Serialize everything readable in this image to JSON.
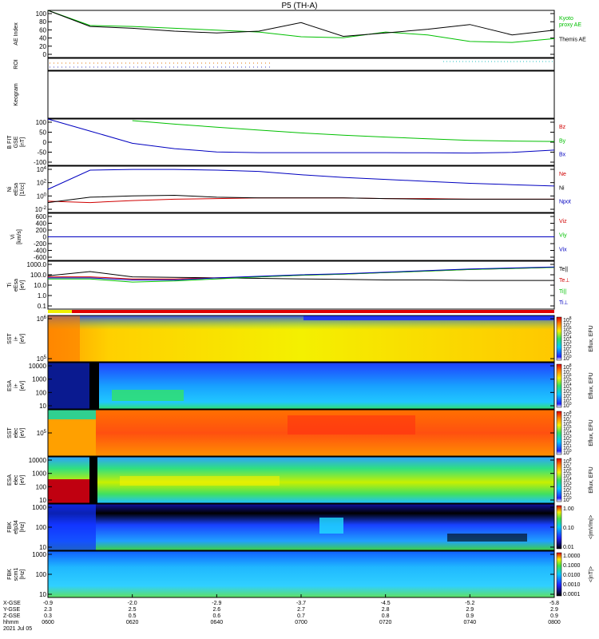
{
  "title": "P5 (TH-A)",
  "panels": [
    {
      "id": "ae",
      "ylabel": [
        "AE Index"
      ],
      "ticks": [
        "100",
        "80",
        "60",
        "40",
        "20",
        "0"
      ],
      "legend": [
        {
          "text": "Kyoto\nproxy AE",
          "color": "#00c000"
        },
        {
          "text": "Themis AE",
          "color": "#000000"
        }
      ]
    },
    {
      "id": "roi",
      "ylabel": [
        "ROI"
      ],
      "ticks": [],
      "legend": []
    },
    {
      "id": "keogram",
      "ylabel": [
        "Keogram"
      ],
      "ticks": [],
      "legend": []
    },
    {
      "id": "bfit",
      "ylabel": [
        "B FIT",
        "GSE",
        "[nT]"
      ],
      "ticks": [
        "100",
        "50",
        "0",
        "-50",
        "-100"
      ],
      "legend": [
        {
          "text": "Bz",
          "color": "#d00000"
        },
        {
          "text": "By",
          "color": "#00c000"
        },
        {
          "text": "Bx",
          "color": "#0000c0"
        }
      ]
    },
    {
      "id": "ni",
      "ylabel": [
        "Ni",
        "eEsa",
        "[1/cc]"
      ],
      "ticks": [
        "10^4",
        "10^2",
        "10^0",
        "10^-2"
      ],
      "legend": [
        {
          "text": "Ne",
          "color": "#d00000"
        },
        {
          "text": "Ni",
          "color": "#000000"
        },
        {
          "text": "Npot",
          "color": "#0000c0"
        }
      ]
    },
    {
      "id": "vi",
      "ylabel": [
        "Vi",
        "[km/s]"
      ],
      "ticks": [
        "600",
        "400",
        "200",
        "0",
        "-200",
        "-400",
        "-600"
      ],
      "legend": [
        {
          "text": "Viz",
          "color": "#d00000"
        },
        {
          "text": "Viy",
          "color": "#00c000"
        },
        {
          "text": "Vix",
          "color": "#0000c0"
        }
      ]
    },
    {
      "id": "ti",
      "ylabel": [
        "Ti",
        "eEsa",
        "[eV]"
      ],
      "ticks": [
        "1000.0",
        "100.0",
        "10.0",
        "1.0",
        "0.1"
      ],
      "legend": [
        {
          "text": "Te||",
          "color": "#000000"
        },
        {
          "text": "Te⊥",
          "color": "#d00000"
        },
        {
          "text": "Ti||",
          "color": "#00c000"
        },
        {
          "text": "Ti⊥",
          "color": "#0000c0"
        }
      ]
    },
    {
      "id": "sst_i",
      "ylabel": [
        "SST",
        "i+",
        "[eV]"
      ],
      "ticks": [
        "10^6",
        "10^5"
      ],
      "cbar": [
        "10^8",
        "10^7",
        "10^6",
        "10^5",
        "10^4",
        "10^3",
        "10^2",
        "10^1",
        "10^0"
      ],
      "cbarlabel": "Eflux, EFU"
    },
    {
      "id": "esa_i",
      "ylabel": [
        "ESA",
        "i+",
        "[eV]"
      ],
      "ticks": [
        "10000",
        "1000",
        "100",
        "10"
      ],
      "cbar": [
        "10^8",
        "10^7",
        "10^6",
        "10^5",
        "10^4",
        "10^3",
        "10^2",
        "10^1",
        "10^0"
      ],
      "cbarlabel": "Eflux, EFU"
    },
    {
      "id": "sst_e",
      "ylabel": [
        "SST",
        "elec",
        "[eV]"
      ],
      "ticks": [
        "10^5"
      ],
      "cbar": [
        "10^8",
        "10^7",
        "10^6",
        "10^5",
        "10^4",
        "10^3",
        "10^2",
        "10^1",
        "10^0"
      ],
      "cbarlabel": "Eflux, EFU"
    },
    {
      "id": "esa_e",
      "ylabel": [
        "ESA",
        "elec",
        "[eV]"
      ],
      "ticks": [
        "10000",
        "1000",
        "100",
        "10"
      ],
      "cbar": [
        "10^8",
        "10^7",
        "10^6",
        "10^5",
        "10^4",
        "10^3",
        "10^2",
        "10^1",
        "10^0"
      ],
      "cbarlabel": "Eflux, EFU"
    },
    {
      "id": "fbk_e",
      "ylabel": [
        "FBK",
        "efp34",
        "[Hz]"
      ],
      "ticks": [
        "1000",
        "100",
        "10"
      ],
      "cbar": [
        "1.00",
        "0.10",
        "0.01"
      ],
      "cbarlabel": "<|mV/m|>"
    },
    {
      "id": "fbk_b",
      "ylabel": [
        "FBK",
        "scm1",
        "[Hz]"
      ],
      "ticks": [
        "1000",
        "100",
        "10"
      ],
      "cbar": [
        "1.0000",
        "0.1000",
        "0.0100",
        "0.0010",
        "0.0001"
      ],
      "cbarlabel": "<|nT|>"
    }
  ],
  "xaxis": {
    "row_labels": [
      "X-GSE",
      "Y-GSE",
      "Z-GSE",
      "hhmm",
      "2021 Jul 05"
    ],
    "columns": [
      {
        "x": "-0.9",
        "y": "2.3",
        "z": "0.3",
        "t": "0600"
      },
      {
        "x": "-2.0",
        "y": "2.5",
        "z": "0.5",
        "t": "0620"
      },
      {
        "x": "-2.9",
        "y": "2.6",
        "z": "0.6",
        "t": "0640"
      },
      {
        "x": "-3.7",
        "y": "2.7",
        "z": "0.7",
        "t": "0700"
      },
      {
        "x": "-4.5",
        "y": "2.8",
        "z": "0.8",
        "t": "0720"
      },
      {
        "x": "-5.2",
        "y": "2.9",
        "z": "0.9",
        "t": "0740"
      },
      {
        "x": "-5.8",
        "y": "2.9",
        "z": "0.9",
        "t": "0800"
      }
    ]
  },
  "chart_data": {
    "type": "line",
    "title": "P5 (TH-A)",
    "x_time_hhmm": [
      "0600",
      "0610",
      "0620",
      "0630",
      "0640",
      "0650",
      "0700",
      "0710",
      "0720",
      "0730",
      "0740",
      "0750",
      "0800"
    ],
    "ae_index": {
      "ylim": [
        0,
        100
      ],
      "series": [
        {
          "name": "Kyoto proxy AE",
          "color": "#00c000",
          "values": [
            100,
            68,
            66,
            62,
            58,
            54,
            44,
            42,
            54,
            48,
            34,
            32,
            40
          ]
        },
        {
          "name": "Themis AE",
          "color": "#000000",
          "values": [
            100,
            66,
            62,
            56,
            52,
            56,
            74,
            45,
            52,
            60,
            70,
            48,
            58
          ]
        }
      ]
    },
    "b_fit_gse": {
      "ylim": [
        -100,
        100
      ],
      "series": [
        {
          "name": "Bz",
          "color": "#d00000",
          "values": []
        },
        {
          "name": "By",
          "color": "#00c000",
          "values": [
            null,
            null,
            93,
            78,
            65,
            52,
            40,
            30,
            22,
            15,
            8,
            5,
            3
          ]
        },
        {
          "name": "Bx",
          "color": "#0000c0",
          "values": [
            100,
            48,
            -5,
            -28,
            -42,
            -45,
            -45,
            -45,
            -45,
            -46,
            -47,
            -44,
            -34
          ]
        }
      ]
    },
    "density_log10": {
      "ylim": [
        -2,
        5
      ],
      "series": [
        {
          "name": "Ne",
          "color": "#d00000",
          "values": [
            -0.3,
            -0.5,
            -0.2,
            0,
            0.1,
            0.2,
            0.2,
            0.2,
            0.1,
            0.1,
            0,
            0,
            0
          ]
        },
        {
          "name": "Ni",
          "color": "#000000",
          "values": [
            -0.5,
            0.3,
            0.5,
            0.6,
            0.3,
            0.2,
            0.2,
            0.2,
            0.1,
            0,
            0,
            0,
            0
          ]
        },
        {
          "name": "Npot",
          "color": "#0000c0",
          "values": [
            1.5,
            4.4,
            4.5,
            4.5,
            4.4,
            4.2,
            3.7,
            3.3,
            3.0,
            2.7,
            2.4,
            2.2,
            2.0
          ]
        }
      ]
    },
    "velocity": {
      "ylim": [
        -600,
        600
      ],
      "series": [
        {
          "name": "Viz",
          "color": "#d00000",
          "values": [
            0,
            0,
            0,
            0,
            0,
            0,
            0,
            0,
            0,
            0,
            0,
            0,
            0
          ]
        },
        {
          "name": "Viy",
          "color": "#00c000",
          "values": [
            0,
            0,
            0,
            0,
            0,
            0,
            0,
            0,
            0,
            0,
            0,
            0,
            0
          ]
        },
        {
          "name": "Vix",
          "color": "#0000c0",
          "values": [
            0,
            0,
            0,
            0,
            0,
            0,
            0,
            0,
            0,
            0,
            0,
            0,
            0
          ]
        }
      ]
    },
    "temperature_log10": {
      "ylim": [
        -1.3,
        3.3
      ],
      "series": [
        {
          "name": "Te||",
          "color": "#000000",
          "values": [
            1.9,
            2.3,
            1.8,
            1.75,
            1.7,
            1.65,
            1.6,
            1.55,
            1.5,
            1.5,
            1.45,
            1.45,
            1.45
          ]
        },
        {
          "name": "Te⊥",
          "color": "#d00000",
          "values": [
            1.8,
            1.8,
            1.6,
            1.6,
            1.7,
            1.8,
            1.95,
            2.05,
            2.2,
            2.35,
            2.5,
            2.6,
            2.7
          ]
        },
        {
          "name": "Ti||",
          "color": "#00c000",
          "values": [
            1.6,
            1.6,
            1.3,
            1.4,
            1.6,
            1.8,
            1.95,
            2.05,
            2.2,
            2.35,
            2.5,
            2.6,
            2.7
          ]
        },
        {
          "name": "Ti⊥",
          "color": "#0000c0",
          "values": [
            1.7,
            1.7,
            1.5,
            1.5,
            1.7,
            1.85,
            2.0,
            2.1,
            2.25,
            2.4,
            2.55,
            2.65,
            2.75
          ]
        }
      ]
    }
  }
}
